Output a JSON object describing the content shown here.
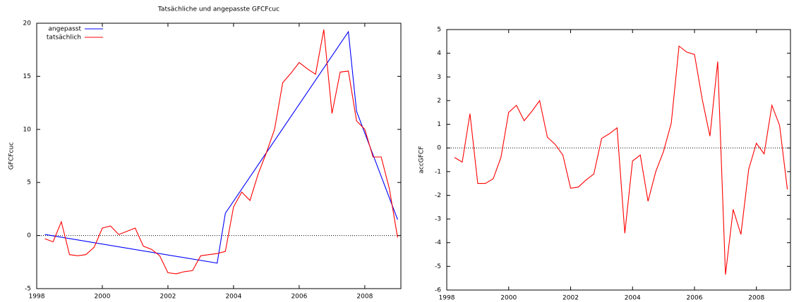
{
  "chart_data": [
    {
      "type": "line",
      "title": "Tatsächliche und angepasste GFCFcuc",
      "y_label": "GFCFcuc",
      "xlim": [
        1998,
        2009.1
      ],
      "xticks": [
        1998,
        2000,
        2002,
        2004,
        2006,
        2008
      ],
      "ylim": [
        -5,
        20
      ],
      "yticks": [
        -5,
        0,
        5,
        10,
        15,
        20
      ],
      "legend": "upper left",
      "series": [
        {
          "name": "angepasst",
          "color": "#0000ff",
          "x": [
            1998.25,
            2003.5,
            2003.75,
            2007.5,
            2007.75,
            2009.0
          ],
          "values": [
            0.1,
            -2.6,
            2.1,
            19.2,
            11.7,
            1.5
          ]
        },
        {
          "name": "tatsächlich",
          "color": "#ff0000",
          "x": [
            1998.25,
            1998.5,
            1998.75,
            1999,
            1999.25,
            1999.5,
            1999.75,
            2000,
            2000.25,
            2000.5,
            2000.75,
            2001,
            2001.25,
            2001.5,
            2001.75,
            2002,
            2002.25,
            2002.5,
            2002.75,
            2003,
            2003.25,
            2003.5,
            2003.75,
            2004,
            2004.25,
            2004.5,
            2004.75,
            2005,
            2005.25,
            2005.5,
            2005.75,
            2006,
            2006.25,
            2006.5,
            2006.75,
            2007,
            2007.25,
            2007.5,
            2007.75,
            2008,
            2008.25,
            2008.5,
            2008.75,
            2009
          ],
          "values": [
            -0.3,
            -0.6,
            1.3,
            -1.8,
            -1.9,
            -1.8,
            -1.1,
            0.7,
            0.9,
            0.1,
            0.4,
            0.7,
            -1.0,
            -1.3,
            -1.9,
            -3.5,
            -3.6,
            -3.4,
            -3.3,
            -1.9,
            -1.8,
            -1.7,
            -1.5,
            2.7,
            4.1,
            3.3,
            5.8,
            7.8,
            10.0,
            14.4,
            15.3,
            16.3,
            15.7,
            15.2,
            19.4,
            11.5,
            15.4,
            15.5,
            10.8,
            10.0,
            7.4,
            7.4,
            4.4,
            -0.2
          ]
        }
      ]
    },
    {
      "type": "line",
      "y_label": "accGFCF",
      "xlim": [
        1998,
        2009.1
      ],
      "xticks": [
        1998,
        2000,
        2002,
        2004,
        2006,
        2008
      ],
      "ylim": [
        -6,
        5
      ],
      "yticks": [
        -6,
        -5,
        -4,
        -3,
        -2,
        -1,
        0,
        1,
        2,
        3,
        4,
        5
      ],
      "series": [
        {
          "color": "#ff0000",
          "x": [
            1998.25,
            1998.5,
            1998.75,
            1999,
            1999.25,
            1999.5,
            1999.75,
            2000,
            2000.25,
            2000.5,
            2000.75,
            2001,
            2001.25,
            2001.5,
            2001.75,
            2002,
            2002.25,
            2002.5,
            2002.75,
            2003,
            2003.25,
            2003.5,
            2003.75,
            2004,
            2004.25,
            2004.5,
            2004.75,
            2005,
            2005.25,
            2005.5,
            2005.75,
            2006,
            2006.25,
            2006.5,
            2006.75,
            2007,
            2007.25,
            2007.5,
            2007.75,
            2008,
            2008.25,
            2008.5,
            2008.75,
            2009
          ],
          "values": [
            -0.4,
            -0.6,
            1.45,
            -1.5,
            -1.5,
            -1.3,
            -0.4,
            1.5,
            1.8,
            1.15,
            1.55,
            2.0,
            0.45,
            0.15,
            -0.3,
            -1.7,
            -1.65,
            -1.35,
            -1.1,
            0.4,
            0.6,
            0.85,
            -3.6,
            -0.55,
            -0.3,
            -2.25,
            -1.0,
            -0.15,
            1.05,
            4.3,
            4.05,
            3.95,
            2.05,
            0.5,
            3.65,
            -5.35,
            -2.6,
            -3.65,
            -0.9,
            0.2,
            -0.25,
            1.8,
            0.95,
            -1.75
          ]
        }
      ]
    }
  ]
}
